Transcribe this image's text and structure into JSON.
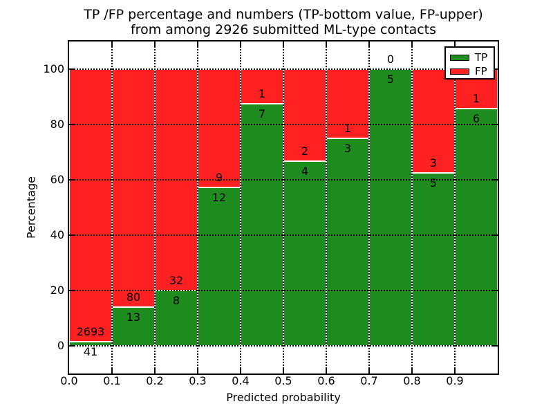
{
  "title": {
    "line1": "TP /FP percentage and numbers (TP-bottom value, FP-upper)",
    "line2": "from among 2926 submitted ML-type contacts"
  },
  "axes": {
    "xlabel": "Predicted probability",
    "ylabel": "Percentage",
    "x_tick_labels": [
      "0.0",
      "0.1",
      "0.2",
      "0.3",
      "0.4",
      "0.5",
      "0.6",
      "0.7",
      "0.8",
      "0.9"
    ],
    "y_tick_values": [
      0,
      20,
      40,
      60,
      80,
      100
    ],
    "xlim": [
      0.0,
      1.0
    ],
    "ylim": [
      -10,
      110
    ],
    "grid": "dotted-black-both-axes"
  },
  "legend": {
    "position": "upper-right",
    "items": [
      {
        "label": "TP",
        "color": "#1e8c1e"
      },
      {
        "label": "FP",
        "color": "#ff2121"
      }
    ]
  },
  "chart_data": {
    "type": "bar",
    "stacked": true,
    "normalized": "each 0.1-wide bin stacked to 100%",
    "title": "TP /FP percentage and numbers (TP-bottom value, FP-upper) from among 2926 submitted ML-type contacts",
    "xlabel": "Predicted probability",
    "ylabel": "Percentage",
    "bin_width": 0.1,
    "categories": [
      "0.0",
      "0.1",
      "0.2",
      "0.3",
      "0.4",
      "0.5",
      "0.6",
      "0.7",
      "0.8",
      "0.9"
    ],
    "series": [
      {
        "name": "TP",
        "color": "#1e8c1e",
        "counts": [
          41,
          13,
          8,
          12,
          7,
          4,
          3,
          5,
          5,
          6
        ]
      },
      {
        "name": "FP",
        "color": "#ff2121",
        "counts": [
          2693,
          80,
          32,
          9,
          1,
          2,
          1,
          0,
          3,
          1
        ]
      }
    ],
    "tp_percent_of_bin": [
      1.5,
      14.0,
      20.0,
      57.1,
      87.5,
      66.7,
      75.0,
      100.0,
      62.5,
      85.7
    ],
    "total_contacts": 2926,
    "bar_value_labels": "FP count printed above TP/FP boundary, TP count printed below it"
  }
}
